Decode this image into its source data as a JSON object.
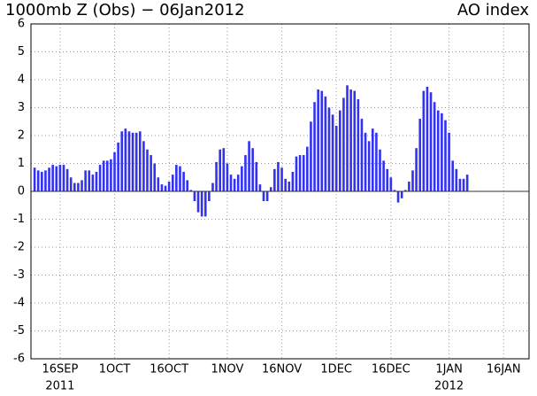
{
  "chart_data": {
    "type": "bar",
    "title": "1000mb Z (Obs) − 06Jan2012",
    "subtitle": "AO index",
    "x": [
      "2011-09-09",
      "2011-09-10",
      "2011-09-11",
      "2011-09-12",
      "2011-09-13",
      "2011-09-14",
      "2011-09-15",
      "2011-09-16",
      "2011-09-17",
      "2011-09-18",
      "2011-09-19",
      "2011-09-20",
      "2011-09-21",
      "2011-09-22",
      "2011-09-23",
      "2011-09-24",
      "2011-09-25",
      "2011-09-26",
      "2011-09-27",
      "2011-09-28",
      "2011-09-29",
      "2011-09-30",
      "2011-10-01",
      "2011-10-02",
      "2011-10-03",
      "2011-10-04",
      "2011-10-05",
      "2011-10-06",
      "2011-10-07",
      "2011-10-08",
      "2011-10-09",
      "2011-10-10",
      "2011-10-11",
      "2011-10-12",
      "2011-10-13",
      "2011-10-14",
      "2011-10-15",
      "2011-10-16",
      "2011-10-17",
      "2011-10-18",
      "2011-10-19",
      "2011-10-20",
      "2011-10-21",
      "2011-10-22",
      "2011-10-23",
      "2011-10-24",
      "2011-10-25",
      "2011-10-26",
      "2011-10-27",
      "2011-10-28",
      "2011-10-29",
      "2011-10-30",
      "2011-10-31",
      "2011-11-01",
      "2011-11-02",
      "2011-11-03",
      "2011-11-04",
      "2011-11-05",
      "2011-11-06",
      "2011-11-07",
      "2011-11-08",
      "2011-11-09",
      "2011-11-10",
      "2011-11-11",
      "2011-11-12",
      "2011-11-13",
      "2011-11-14",
      "2011-11-15",
      "2011-11-16",
      "2011-11-17",
      "2011-11-18",
      "2011-11-19",
      "2011-11-20",
      "2011-11-21",
      "2011-11-22",
      "2011-11-23",
      "2011-11-24",
      "2011-11-25",
      "2011-11-26",
      "2011-11-27",
      "2011-11-28",
      "2011-11-29",
      "2011-11-30",
      "2011-12-01",
      "2011-12-02",
      "2011-12-03",
      "2011-12-04",
      "2011-12-05",
      "2011-12-06",
      "2011-12-07",
      "2011-12-08",
      "2011-12-09",
      "2011-12-10",
      "2011-12-11",
      "2011-12-12",
      "2011-12-13",
      "2011-12-14",
      "2011-12-15",
      "2011-12-16",
      "2011-12-17",
      "2011-12-18",
      "2011-12-19",
      "2011-12-20",
      "2011-12-21",
      "2011-12-22",
      "2011-12-23",
      "2011-12-24",
      "2011-12-25",
      "2011-12-26",
      "2011-12-27",
      "2011-12-28",
      "2011-12-29",
      "2011-12-30",
      "2011-12-31",
      "2012-01-01",
      "2012-01-02",
      "2012-01-03",
      "2012-01-04",
      "2012-01-05",
      "2012-01-06"
    ],
    "values": [
      0.85,
      0.75,
      0.7,
      0.75,
      0.85,
      0.95,
      0.9,
      0.95,
      0.95,
      0.8,
      0.5,
      0.3,
      0.3,
      0.4,
      0.75,
      0.75,
      0.6,
      0.7,
      0.95,
      1.1,
      1.1,
      1.15,
      1.4,
      1.75,
      2.15,
      2.25,
      2.15,
      2.1,
      2.1,
      2.15,
      1.8,
      1.5,
      1.3,
      1.0,
      0.5,
      0.25,
      0.2,
      0.35,
      0.6,
      0.95,
      0.9,
      0.7,
      0.4,
      0.05,
      -0.35,
      -0.75,
      -0.9,
      -0.9,
      -0.35,
      0.3,
      1.05,
      1.5,
      1.55,
      1.0,
      0.6,
      0.45,
      0.6,
      0.9,
      1.3,
      1.8,
      1.55,
      1.05,
      0.25,
      -0.35,
      -0.35,
      0.15,
      0.8,
      1.05,
      0.85,
      0.45,
      0.35,
      0.7,
      1.25,
      1.3,
      1.3,
      1.6,
      2.5,
      3.2,
      3.65,
      3.6,
      3.4,
      3.0,
      2.75,
      2.35,
      2.9,
      3.35,
      3.8,
      3.65,
      3.6,
      3.3,
      2.6,
      2.1,
      1.8,
      2.25,
      2.1,
      1.5,
      1.1,
      0.8,
      0.5,
      0.05,
      -0.4,
      -0.25,
      0.05,
      0.35,
      0.75,
      1.55,
      2.6,
      3.6,
      3.75,
      3.55,
      3.2,
      2.9,
      2.8,
      2.55,
      2.1,
      1.1,
      0.8,
      0.45,
      0.45,
      0.6
    ],
    "color": "#3232f0",
    "xlim": [
      "2011-09-08",
      "2012-01-23"
    ],
    "xticks": [
      {
        "value": "2011-09-16",
        "label": "16SEP"
      },
      {
        "value": "2011-10-01",
        "label": "1OCT"
      },
      {
        "value": "2011-10-16",
        "label": "16OCT"
      },
      {
        "value": "2011-11-01",
        "label": "1NOV"
      },
      {
        "value": "2011-11-16",
        "label": "16NOV"
      },
      {
        "value": "2011-12-01",
        "label": "1DEC"
      },
      {
        "value": "2011-12-16",
        "label": "16DEC"
      },
      {
        "value": "2012-01-01",
        "label": "1JAN"
      },
      {
        "value": "2012-01-16",
        "label": "16JAN"
      }
    ],
    "x_year_labels": [
      {
        "value": "2011-09-16",
        "label": "2011"
      },
      {
        "value": "2012-01-01",
        "label": "2012"
      }
    ],
    "ylim": [
      -6,
      6
    ],
    "yticks": [
      -6,
      -5,
      -4,
      -3,
      -2,
      -1,
      0,
      1,
      2,
      3,
      4,
      5,
      6
    ],
    "grid": true
  }
}
